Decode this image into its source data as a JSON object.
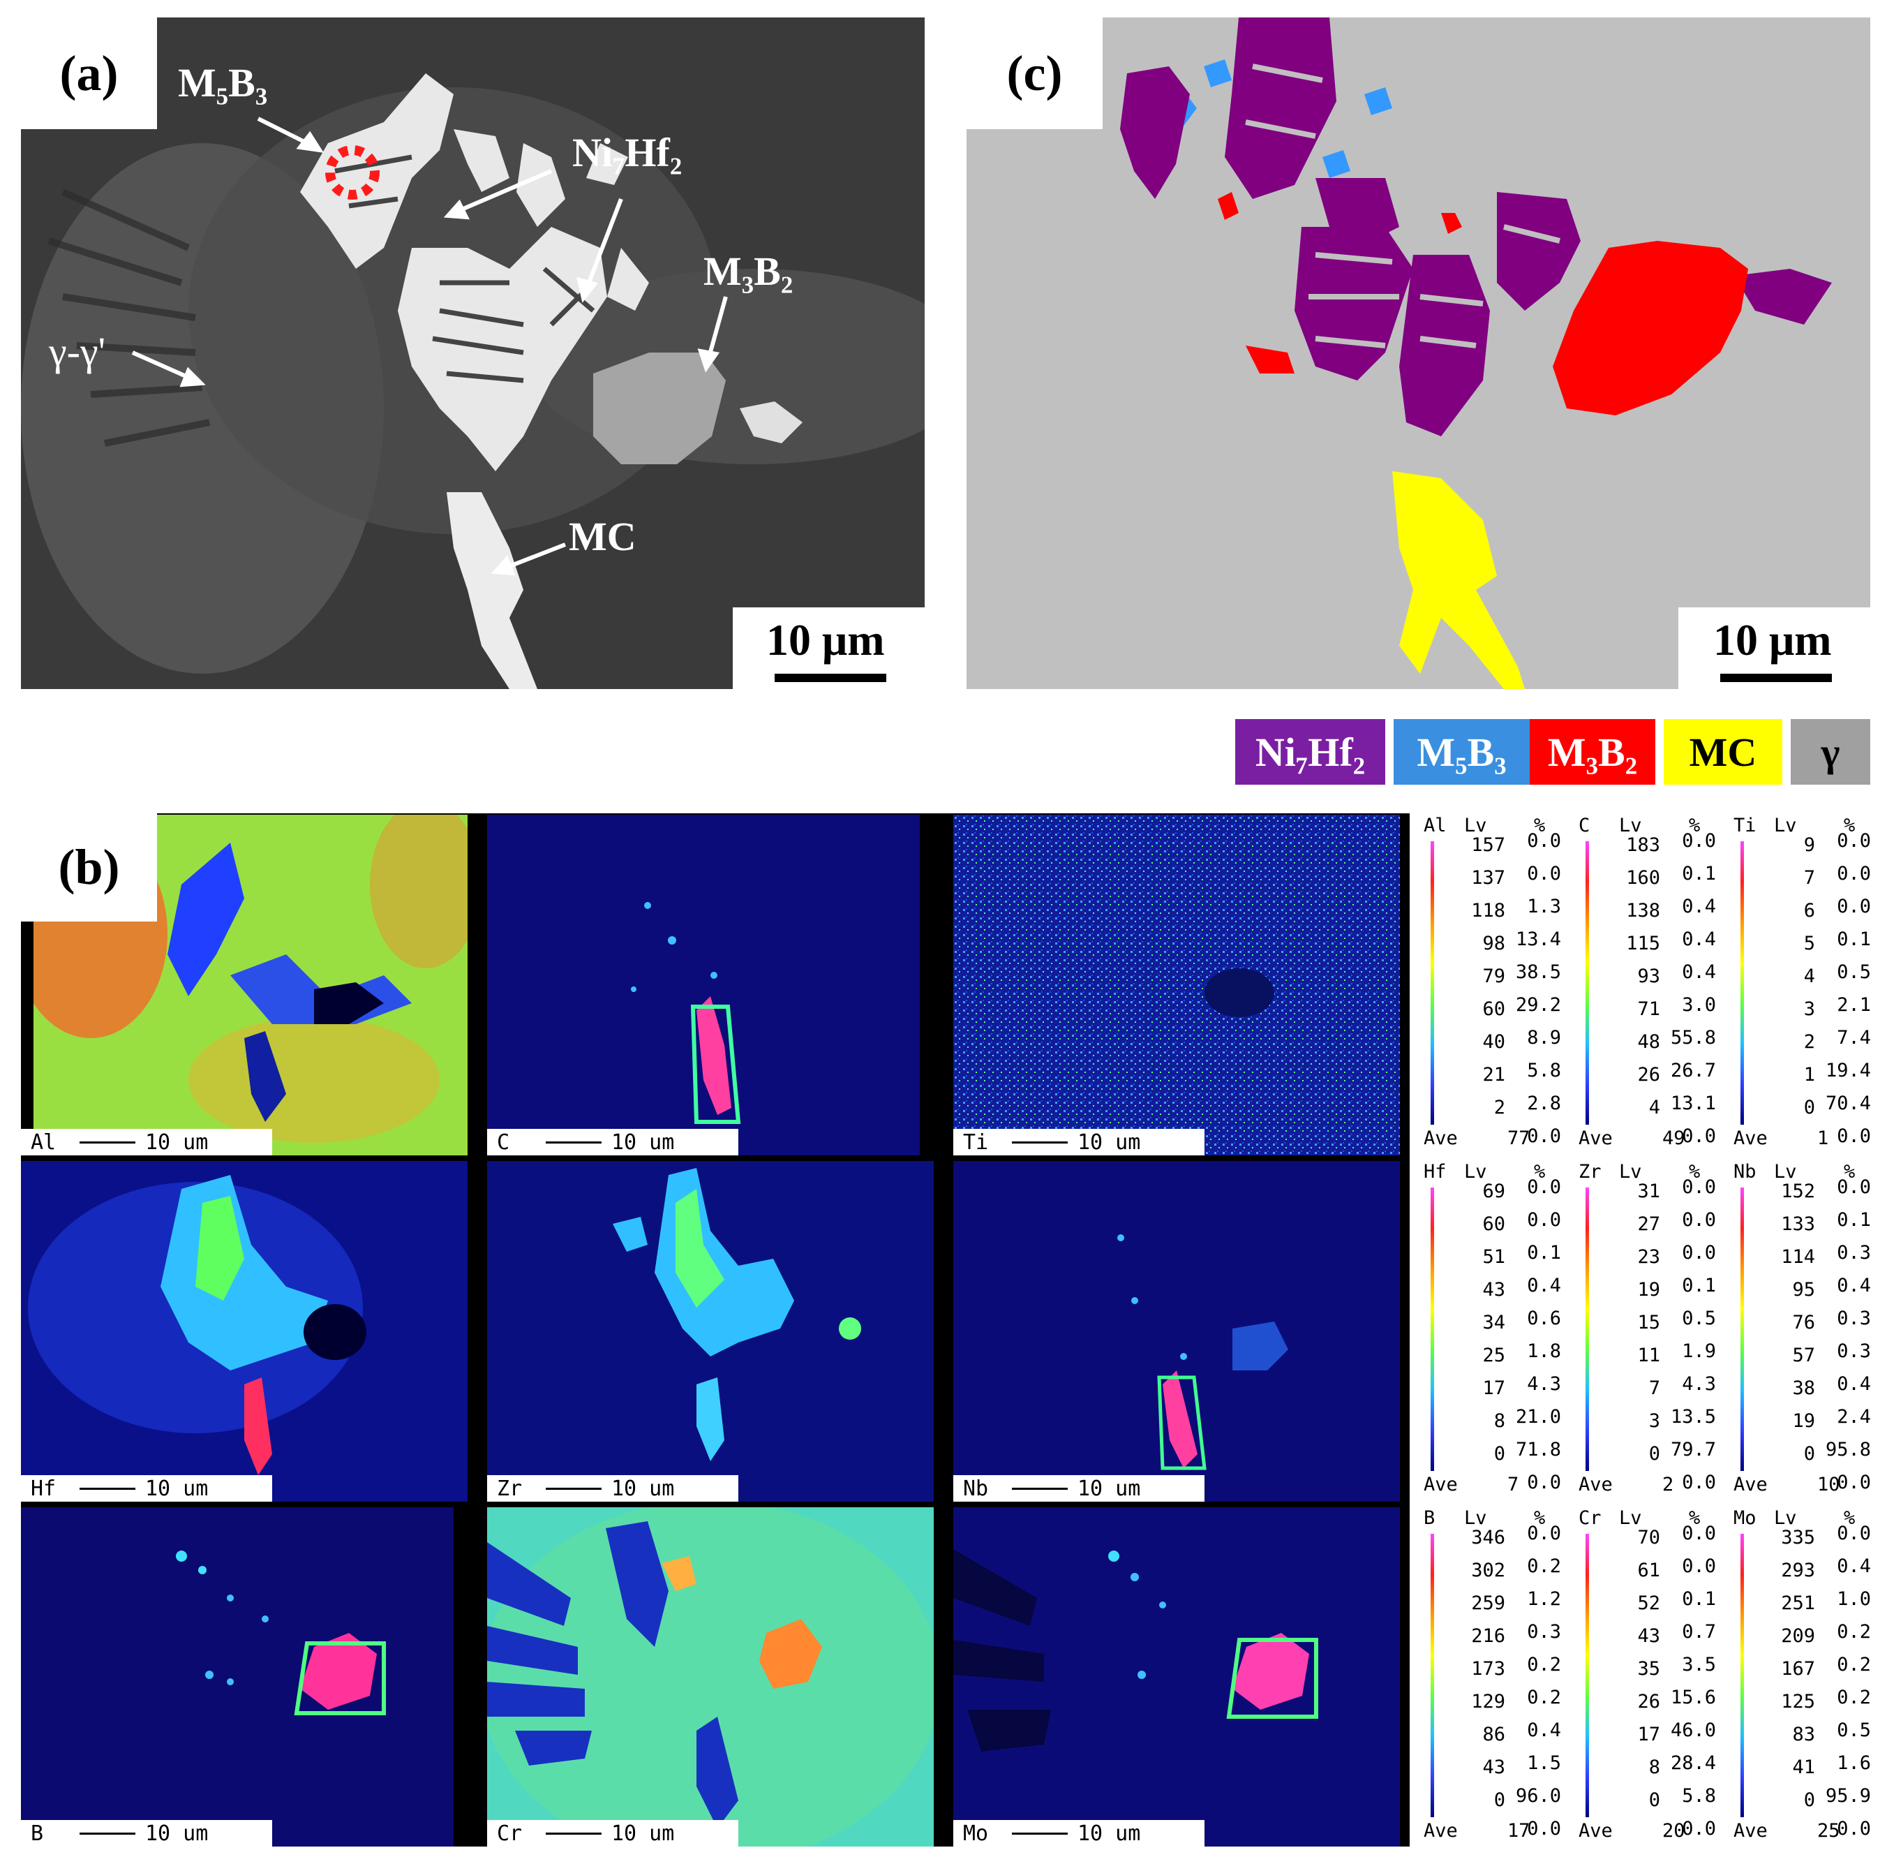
{
  "panel_a": {
    "label": "(a)",
    "annotations": {
      "m5b3": "M₅B₃",
      "ni7hf2": "Ni₇Hf₂",
      "m3b2": "M₃B₂",
      "gamma": "γ-γ'",
      "mc": "MC"
    },
    "scale_bar": "10 μm"
  },
  "panel_c": {
    "label": "(c)",
    "scale_bar": "10 μm",
    "colors": {
      "background": "#c0c0c0",
      "ni7hf2": "#800080",
      "m5b3": "#3399ff",
      "m3b2": "#ff0000",
      "mc": "#ffff00"
    }
  },
  "legend": [
    {
      "label": "Ni₇Hf₂",
      "color": "#7b1fa2",
      "text_color": "#ffffff"
    },
    {
      "label": "M₅B₃",
      "color": "#3a8fe0",
      "text_color": "#ffffff"
    },
    {
      "label": "M₃B₂",
      "color": "#ff0000",
      "text_color": "#ffffff"
    },
    {
      "label": "MC",
      "color": "#ffff00",
      "text_color": "#000000"
    },
    {
      "label": "γ",
      "color": "#a0a0a0",
      "text_color": "#000000"
    }
  ],
  "panel_b": {
    "label": "(b)",
    "scale_text": "10 um",
    "maps": [
      {
        "element": "Al"
      },
      {
        "element": "C"
      },
      {
        "element": "Ti"
      },
      {
        "element": "Hf"
      },
      {
        "element": "Zr"
      },
      {
        "element": "Nb"
      },
      {
        "element": "B"
      },
      {
        "element": "Cr"
      },
      {
        "element": "Mo"
      }
    ],
    "scales": [
      {
        "element": "Al",
        "lv_header": "Lv",
        "pct_header": "%",
        "lv": [
          "157",
          "137",
          "118",
          "98",
          "79",
          "60",
          "40",
          "21",
          "2"
        ],
        "pct": [
          "0.0",
          "0.0",
          "1.3",
          "13.4",
          "38.5",
          "29.2",
          "8.9",
          "5.8",
          "2.8",
          "0.0"
        ],
        "ave_label": "Ave",
        "ave": "77"
      },
      {
        "element": "C",
        "lv_header": "Lv",
        "pct_header": "%",
        "lv": [
          "183",
          "160",
          "138",
          "115",
          "93",
          "71",
          "48",
          "26",
          "4"
        ],
        "pct": [
          "0.0",
          "0.1",
          "0.4",
          "0.4",
          "0.4",
          "3.0",
          "55.8",
          "26.7",
          "13.1",
          "0.0"
        ],
        "ave_label": "Ave",
        "ave": "49"
      },
      {
        "element": "Ti",
        "lv_header": "Lv",
        "pct_header": "%",
        "lv": [
          "9",
          "7",
          "6",
          "5",
          "4",
          "3",
          "2",
          "1",
          "0"
        ],
        "pct": [
          "0.0",
          "0.0",
          "0.0",
          "0.1",
          "0.5",
          "2.1",
          "7.4",
          "19.4",
          "70.4",
          "0.0"
        ],
        "ave_label": "Ave",
        "ave": "1"
      },
      {
        "element": "Hf",
        "lv_header": "Lv",
        "pct_header": "%",
        "lv": [
          "69",
          "60",
          "51",
          "43",
          "34",
          "25",
          "17",
          "8",
          "0"
        ],
        "pct": [
          "0.0",
          "0.0",
          "0.1",
          "0.4",
          "0.6",
          "1.8",
          "4.3",
          "21.0",
          "71.8",
          "0.0"
        ],
        "ave_label": "Ave",
        "ave": "7"
      },
      {
        "element": "Zr",
        "lv_header": "Lv",
        "pct_header": "%",
        "lv": [
          "31",
          "27",
          "23",
          "19",
          "15",
          "11",
          "7",
          "3",
          "0"
        ],
        "pct": [
          "0.0",
          "0.0",
          "0.0",
          "0.1",
          "0.5",
          "1.9",
          "4.3",
          "13.5",
          "79.7",
          "0.0"
        ],
        "ave_label": "Ave",
        "ave": "2"
      },
      {
        "element": "Nb",
        "lv_header": "Lv",
        "pct_header": "%",
        "lv": [
          "152",
          "133",
          "114",
          "95",
          "76",
          "57",
          "38",
          "19",
          "0"
        ],
        "pct": [
          "0.0",
          "0.1",
          "0.3",
          "0.4",
          "0.3",
          "0.3",
          "0.4",
          "2.4",
          "95.8",
          "0.0"
        ],
        "ave_label": "Ave",
        "ave": "10"
      },
      {
        "element": "B",
        "lv_header": "Lv",
        "pct_header": "%",
        "lv": [
          "346",
          "302",
          "259",
          "216",
          "173",
          "129",
          "86",
          "43",
          "0"
        ],
        "pct": [
          "0.0",
          "0.2",
          "1.2",
          "0.3",
          "0.2",
          "0.2",
          "0.4",
          "1.5",
          "96.0",
          "0.0"
        ],
        "ave_label": "Ave",
        "ave": "17"
      },
      {
        "element": "Cr",
        "lv_header": "Lv",
        "pct_header": "%",
        "lv": [
          "70",
          "61",
          "52",
          "43",
          "35",
          "26",
          "17",
          "8",
          "0"
        ],
        "pct": [
          "0.0",
          "0.0",
          "0.1",
          "0.7",
          "3.5",
          "15.6",
          "46.0",
          "28.4",
          "5.8",
          "0.0"
        ],
        "ave_label": "Ave",
        "ave": "20"
      },
      {
        "element": "Mo",
        "lv_header": "Lv",
        "pct_header": "%",
        "lv": [
          "335",
          "293",
          "251",
          "209",
          "167",
          "125",
          "83",
          "41",
          "0"
        ],
        "pct": [
          "0.0",
          "0.4",
          "1.0",
          "0.2",
          "0.2",
          "0.2",
          "0.5",
          "1.6",
          "95.9",
          "0.0"
        ],
        "ave_label": "Ave",
        "ave": "25"
      }
    ]
  }
}
